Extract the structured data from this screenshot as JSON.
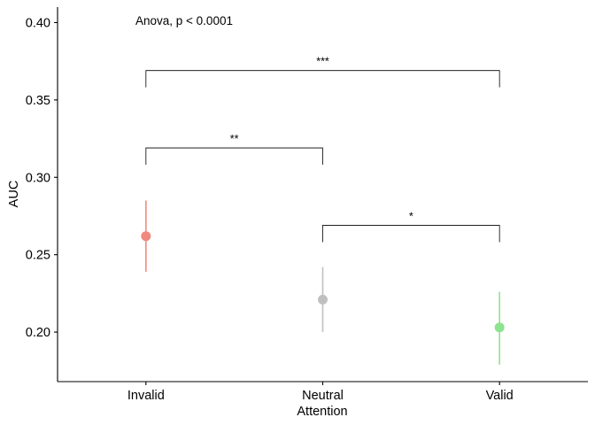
{
  "chart_data": {
    "type": "scatter",
    "annotation": "Anova, p < 0.0001",
    "xlabel": "Attention",
    "ylabel": "AUC",
    "categories": [
      "Invalid",
      "Neutral",
      "Valid"
    ],
    "points": [
      {
        "category": "Invalid",
        "mean": 0.262,
        "lower": 0.239,
        "upper": 0.285,
        "color": "#F08A80"
      },
      {
        "category": "Neutral",
        "mean": 0.221,
        "lower": 0.2,
        "upper": 0.242,
        "color": "#C0C0C0"
      },
      {
        "category": "Valid",
        "mean": 0.203,
        "lower": 0.179,
        "upper": 0.226,
        "color": "#8EE38E"
      }
    ],
    "comparisons": [
      {
        "from": "Invalid",
        "to": "Neutral",
        "y": 0.319,
        "label": "**"
      },
      {
        "from": "Neutral",
        "to": "Valid",
        "y": 0.269,
        "label": "*"
      },
      {
        "from": "Invalid",
        "to": "Valid",
        "y": 0.369,
        "label": "***"
      }
    ],
    "yticks": [
      0.2,
      0.25,
      0.3,
      0.35,
      0.4
    ],
    "ytick_labels": [
      "0.20",
      "0.25",
      "0.30",
      "0.35",
      "0.40"
    ],
    "ylim": [
      0.168,
      0.41
    ],
    "grid": false
  }
}
